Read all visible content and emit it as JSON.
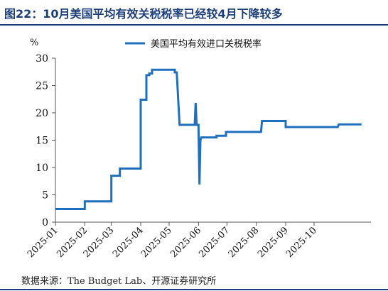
{
  "figure_title": "图22：10月美国平均有效关税税率已经较4月下降较多",
  "source_note": "数据来源：The Budget Lab、开源证券研究所",
  "chart_data": {
    "type": "line",
    "title": "",
    "xlabel": "",
    "ylabel": "",
    "unit_label": "%",
    "ylim": [
      0,
      30
    ],
    "yticks": [
      "0",
      "5",
      "10",
      "15",
      "20",
      "25",
      "30"
    ],
    "xlim": [
      "2025-01-01",
      "2025-11-30"
    ],
    "xticks": [
      {
        "date": "2025-01-01",
        "label": "2025-01"
      },
      {
        "date": "2025-02-01",
        "label": "2025-02"
      },
      {
        "date": "2025-03-01",
        "label": "2025-03"
      },
      {
        "date": "2025-04-01",
        "label": "2025-04"
      },
      {
        "date": "2025-05-01",
        "label": "2025-05"
      },
      {
        "date": "2025-06-01",
        "label": "2025-06"
      },
      {
        "date": "2025-07-01",
        "label": "2025-07"
      },
      {
        "date": "2025-08-01",
        "label": "2025-08"
      },
      {
        "date": "2025-09-01",
        "label": "2025-09"
      },
      {
        "date": "2025-10-01",
        "label": "2025-10"
      }
    ],
    "grid": false,
    "legend_position": "top-center",
    "color": "#1f6fbf",
    "series": [
      {
        "name": "美国平均有效进口关税税率",
        "points": [
          [
            "2025-01-01",
            2.4
          ],
          [
            "2025-02-01",
            2.4
          ],
          [
            "2025-02-01",
            3.8
          ],
          [
            "2025-03-01",
            3.8
          ],
          [
            "2025-03-01",
            8.5
          ],
          [
            "2025-03-10",
            8.5
          ],
          [
            "2025-03-10",
            9.8
          ],
          [
            "2025-04-01",
            9.8
          ],
          [
            "2025-04-01",
            22.4
          ],
          [
            "2025-04-07",
            22.4
          ],
          [
            "2025-04-07",
            26.9
          ],
          [
            "2025-04-10",
            26.9
          ],
          [
            "2025-04-10",
            27.2
          ],
          [
            "2025-04-13",
            27.2
          ],
          [
            "2025-04-13",
            27.9
          ],
          [
            "2025-05-07",
            27.9
          ],
          [
            "2025-05-07",
            27.4
          ],
          [
            "2025-05-09",
            27.4
          ],
          [
            "2025-05-12",
            17.8
          ],
          [
            "2025-05-28",
            17.8
          ],
          [
            "2025-05-29",
            21.8
          ],
          [
            "2025-05-30",
            17.8
          ],
          [
            "2025-06-01",
            17.8
          ],
          [
            "2025-06-02",
            6.9
          ],
          [
            "2025-06-03",
            15.0
          ],
          [
            "2025-06-04",
            15.5
          ],
          [
            "2025-06-20",
            15.5
          ],
          [
            "2025-06-20",
            15.8
          ],
          [
            "2025-06-30",
            15.8
          ],
          [
            "2025-06-30",
            16.5
          ],
          [
            "2025-08-06",
            16.5
          ],
          [
            "2025-08-07",
            18.5
          ],
          [
            "2025-09-01",
            18.5
          ],
          [
            "2025-09-01",
            17.4
          ],
          [
            "2025-10-26",
            17.4
          ],
          [
            "2025-10-27",
            17.9
          ],
          [
            "2025-11-20",
            17.9
          ]
        ]
      }
    ]
  }
}
